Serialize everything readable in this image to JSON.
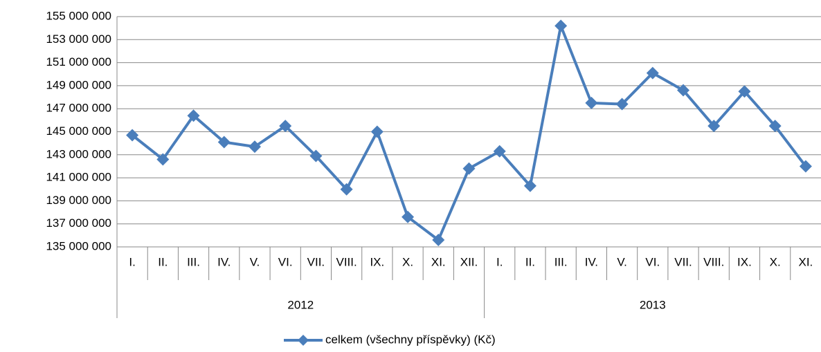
{
  "chart_data": {
    "type": "line",
    "groups": [
      {
        "name": "2012",
        "categories": [
          "I.",
          "II.",
          "III.",
          "IV.",
          "V.",
          "VI.",
          "VII.",
          "VIII.",
          "IX.",
          "X.",
          "XI.",
          "XII."
        ]
      },
      {
        "name": "2013",
        "categories": [
          "I.",
          "II.",
          "III.",
          "IV.",
          "V.",
          "VI.",
          "VII.",
          "VIII.",
          "IX.",
          "X.",
          "XI."
        ]
      }
    ],
    "series": [
      {
        "name": "celkem (všechny příspěvky) (Kč)",
        "color": "#4a7ebb",
        "values": [
          144700000,
          142600000,
          146400000,
          144100000,
          143700000,
          145500000,
          142900000,
          140000000,
          145000000,
          137600000,
          135600000,
          141800000,
          143300000,
          140300000,
          154200000,
          147500000,
          147400000,
          150100000,
          148600000,
          145500000,
          148500000,
          145500000,
          142000000
        ]
      }
    ],
    "ylim": [
      135000000,
      155000000
    ],
    "yticks": [
      {
        "value": 135000000,
        "label": "135 000 000"
      },
      {
        "value": 137000000,
        "label": "137 000 000"
      },
      {
        "value": 139000000,
        "label": "139 000 000"
      },
      {
        "value": 141000000,
        "label": "141 000 000"
      },
      {
        "value": 143000000,
        "label": "143 000 000"
      },
      {
        "value": 145000000,
        "label": "145 000 000"
      },
      {
        "value": 147000000,
        "label": "147 000 000"
      },
      {
        "value": 149000000,
        "label": "149 000 000"
      },
      {
        "value": 151000000,
        "label": "151 000 000"
      },
      {
        "value": 153000000,
        "label": "153 000 000"
      },
      {
        "value": 155000000,
        "label": "155 000 000"
      }
    ],
    "grid": true,
    "legend": "bottom"
  }
}
